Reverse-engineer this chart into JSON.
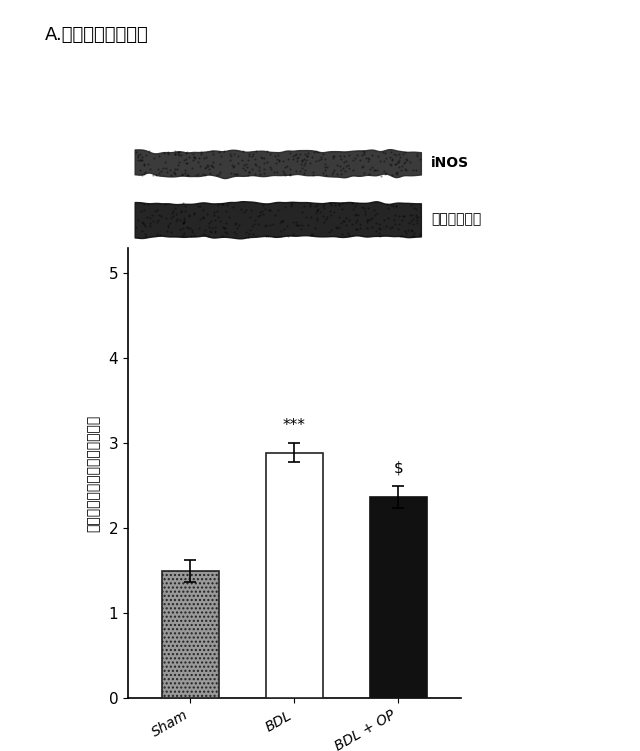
{
  "title": "A.　脲ｉＮＯＳ発現",
  "ylabel": "相対的ｉＮＯＳタンパク質発現",
  "categories": [
    "Sham",
    "BDL",
    "BDL + OP"
  ],
  "values": [
    1.5,
    2.89,
    2.37
  ],
  "errors": [
    0.13,
    0.11,
    0.13
  ],
  "ylim": [
    0,
    5.3
  ],
  "yticks": [
    0,
    1,
    2,
    3,
    4,
    5
  ],
  "annot_bdl": "***",
  "annot_bdlop": "$",
  "blot_label_inos": "iNOS",
  "blot_label_tubulin": "チューブリン",
  "background_color": "#ffffff",
  "bar_width": 0.55
}
